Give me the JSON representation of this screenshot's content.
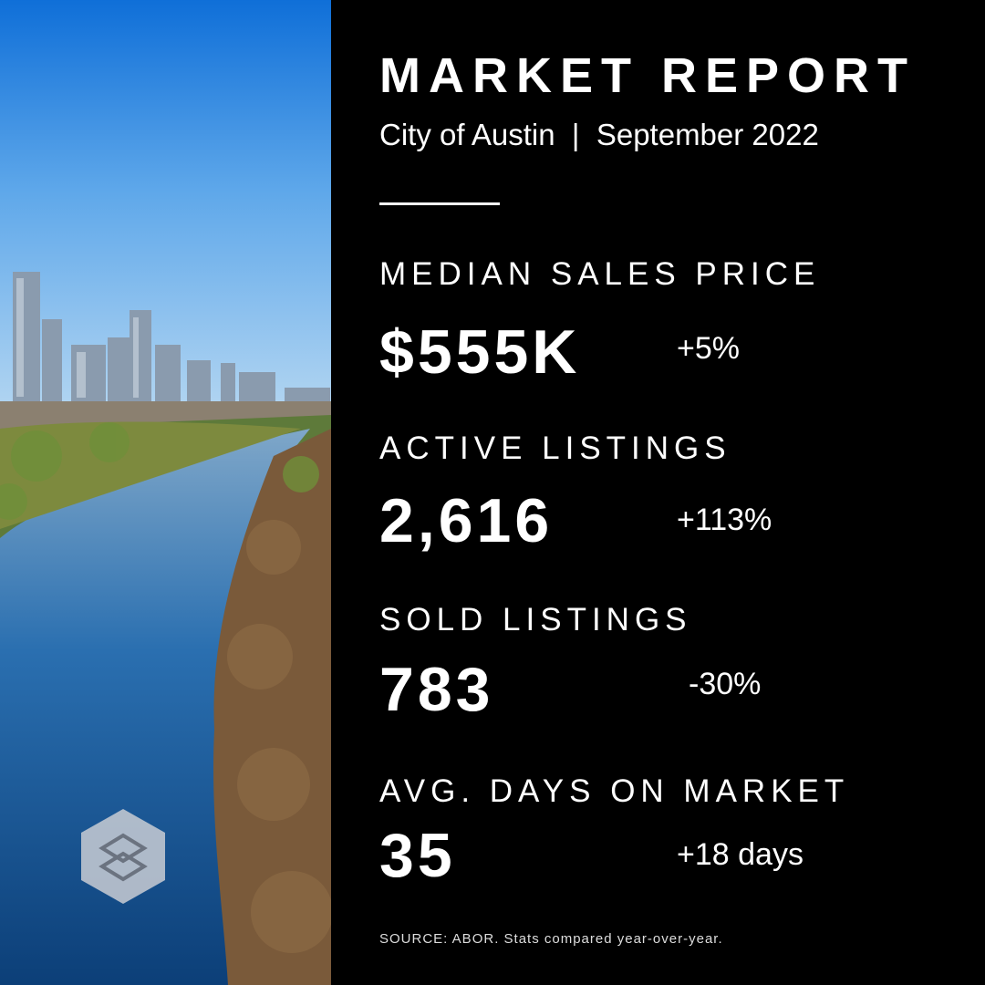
{
  "header": {
    "title": "MARKET REPORT",
    "subtitle": "City of Austin  |  September 2022"
  },
  "stats": [
    {
      "label": "MEDIAN SALES PRICE",
      "value": "$555K",
      "change": "+5%"
    },
    {
      "label": "ACTIVE LISTINGS",
      "value": "2,616",
      "change": "+113%"
    },
    {
      "label": "SOLD LISTINGS",
      "value": "783",
      "change": "-30%"
    },
    {
      "label": "AVG. DAYS ON MARKET",
      "value": "35",
      "change": "+18 days"
    }
  ],
  "footer": {
    "source": "SOURCE: ABOR. Stats compared year-over-year."
  }
}
